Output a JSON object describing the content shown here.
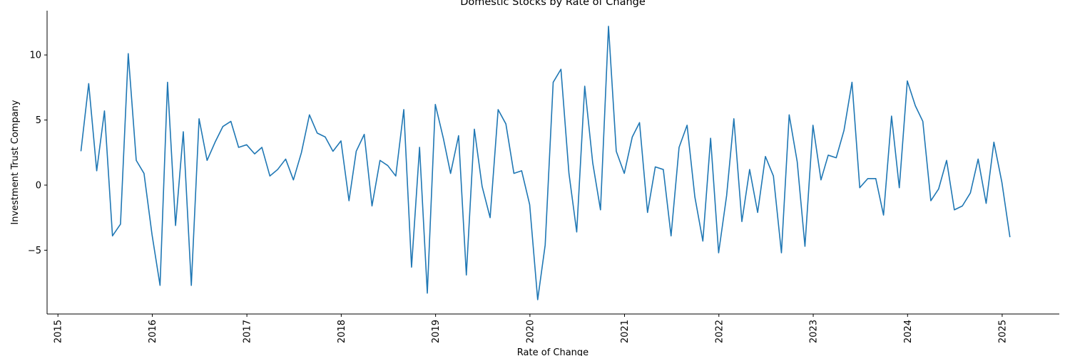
{
  "chart_data": {
    "type": "line",
    "title": "Domestic Stocks by Rate of Change",
    "xlabel": "Rate of Change",
    "ylabel": "Investment Trust Company",
    "xlim": [
      "2014-11-20",
      "2025-08-10"
    ],
    "ylim": [
      -9.9,
      13.4
    ],
    "x_ticks": [
      "2015",
      "2016",
      "2017",
      "2018",
      "2019",
      "2020",
      "2021",
      "2022",
      "2023",
      "2024",
      "2025"
    ],
    "y_ticks": [
      {
        "value": -5,
        "label": "−5"
      },
      {
        "value": 0,
        "label": "0"
      },
      {
        "value": 5,
        "label": "5"
      },
      {
        "value": 10,
        "label": "10"
      }
    ],
    "grid": false,
    "series": [
      {
        "color": "#1f77b4",
        "x": [
          "2015-03-31",
          "2015-04-30",
          "2015-05-31",
          "2015-06-30",
          "2015-07-31",
          "2015-08-31",
          "2015-09-30",
          "2015-10-31",
          "2015-11-30",
          "2015-12-31",
          "2016-01-31",
          "2016-02-29",
          "2016-03-31",
          "2016-04-30",
          "2016-05-31",
          "2016-06-30",
          "2016-07-31",
          "2016-08-31",
          "2016-09-30",
          "2016-10-31",
          "2016-11-30",
          "2016-12-31",
          "2017-01-31",
          "2017-02-28",
          "2017-03-31",
          "2017-04-30",
          "2017-05-31",
          "2017-06-30",
          "2017-07-31",
          "2017-08-31",
          "2017-09-30",
          "2017-10-31",
          "2017-11-30",
          "2017-12-31",
          "2018-01-31",
          "2018-02-28",
          "2018-03-31",
          "2018-04-30",
          "2018-05-31",
          "2018-06-30",
          "2018-07-31",
          "2018-08-31",
          "2018-09-30",
          "2018-10-31",
          "2018-11-30",
          "2018-12-31",
          "2019-01-31",
          "2019-02-28",
          "2019-03-31",
          "2019-04-30",
          "2019-05-31",
          "2019-06-30",
          "2019-07-31",
          "2019-08-31",
          "2019-09-30",
          "2019-10-31",
          "2019-11-30",
          "2019-12-31",
          "2020-01-31",
          "2020-02-29",
          "2020-03-31",
          "2020-04-30",
          "2020-05-31",
          "2020-06-30",
          "2020-07-31",
          "2020-08-31",
          "2020-09-30",
          "2020-10-31",
          "2020-11-30",
          "2020-12-31",
          "2021-01-31",
          "2021-02-28",
          "2021-03-31",
          "2021-04-30",
          "2021-05-31",
          "2021-06-30",
          "2021-07-31",
          "2021-08-31",
          "2021-09-30",
          "2021-10-31",
          "2021-11-30",
          "2021-12-31",
          "2022-01-31",
          "2022-02-28",
          "2022-03-31",
          "2022-04-30",
          "2022-05-31",
          "2022-06-30",
          "2022-07-31",
          "2022-08-31",
          "2022-09-30",
          "2022-10-31",
          "2022-11-30",
          "2022-12-31",
          "2023-01-31",
          "2023-02-28",
          "2023-03-31",
          "2023-04-30",
          "2023-05-31",
          "2023-06-30",
          "2023-07-31",
          "2023-08-31",
          "2023-09-30",
          "2023-10-31",
          "2023-11-30",
          "2023-12-31",
          "2024-01-31",
          "2024-02-29",
          "2024-03-31",
          "2024-04-30",
          "2024-05-31",
          "2024-06-30",
          "2024-07-31",
          "2024-08-31",
          "2024-09-30",
          "2024-10-31",
          "2024-11-30",
          "2024-12-31",
          "2025-01-31"
        ],
        "values": [
          2.6,
          7.8,
          1.1,
          5.7,
          -3.9,
          -3.0,
          10.1,
          1.9,
          0.9,
          -3.8,
          -7.7,
          7.9,
          -3.1,
          4.1,
          -7.7,
          5.1,
          1.9,
          3.3,
          4.5,
          4.9,
          2.9,
          3.1,
          2.4,
          2.9,
          0.7,
          1.2,
          2.0,
          0.4,
          2.5,
          5.4,
          4.0,
          3.7,
          2.6,
          3.4,
          -1.2,
          2.6,
          3.9,
          -1.6,
          1.9,
          1.5,
          0.7,
          5.8,
          -6.3,
          2.9,
          -8.3,
          6.2,
          3.6,
          0.9,
          3.8,
          -6.9,
          4.3,
          -0.1,
          -2.5,
          5.8,
          4.7,
          0.9,
          1.1,
          -1.5,
          -8.8,
          -4.6,
          7.9,
          8.9,
          0.9,
          -3.6,
          7.6,
          1.7,
          -1.9,
          12.2,
          2.6,
          0.9,
          3.7,
          4.8,
          -2.1,
          1.4,
          1.2,
          -3.9,
          2.9,
          4.6,
          -0.9,
          -4.3,
          3.6,
          -5.2,
          -0.8,
          5.1,
          -2.8,
          1.2,
          -2.1,
          2.2,
          0.7,
          -5.2,
          5.4,
          1.8,
          -4.7,
          4.6,
          0.4,
          2.3,
          2.1,
          4.2,
          7.9,
          -0.2,
          0.5,
          0.5,
          -2.3,
          5.3,
          -0.2,
          8.0,
          6.1,
          4.9,
          -1.2,
          -0.3,
          1.9,
          -1.9,
          -1.6,
          -0.6,
          2.0,
          -1.4,
          3.3,
          0.2,
          -4.0
        ]
      }
    ]
  }
}
